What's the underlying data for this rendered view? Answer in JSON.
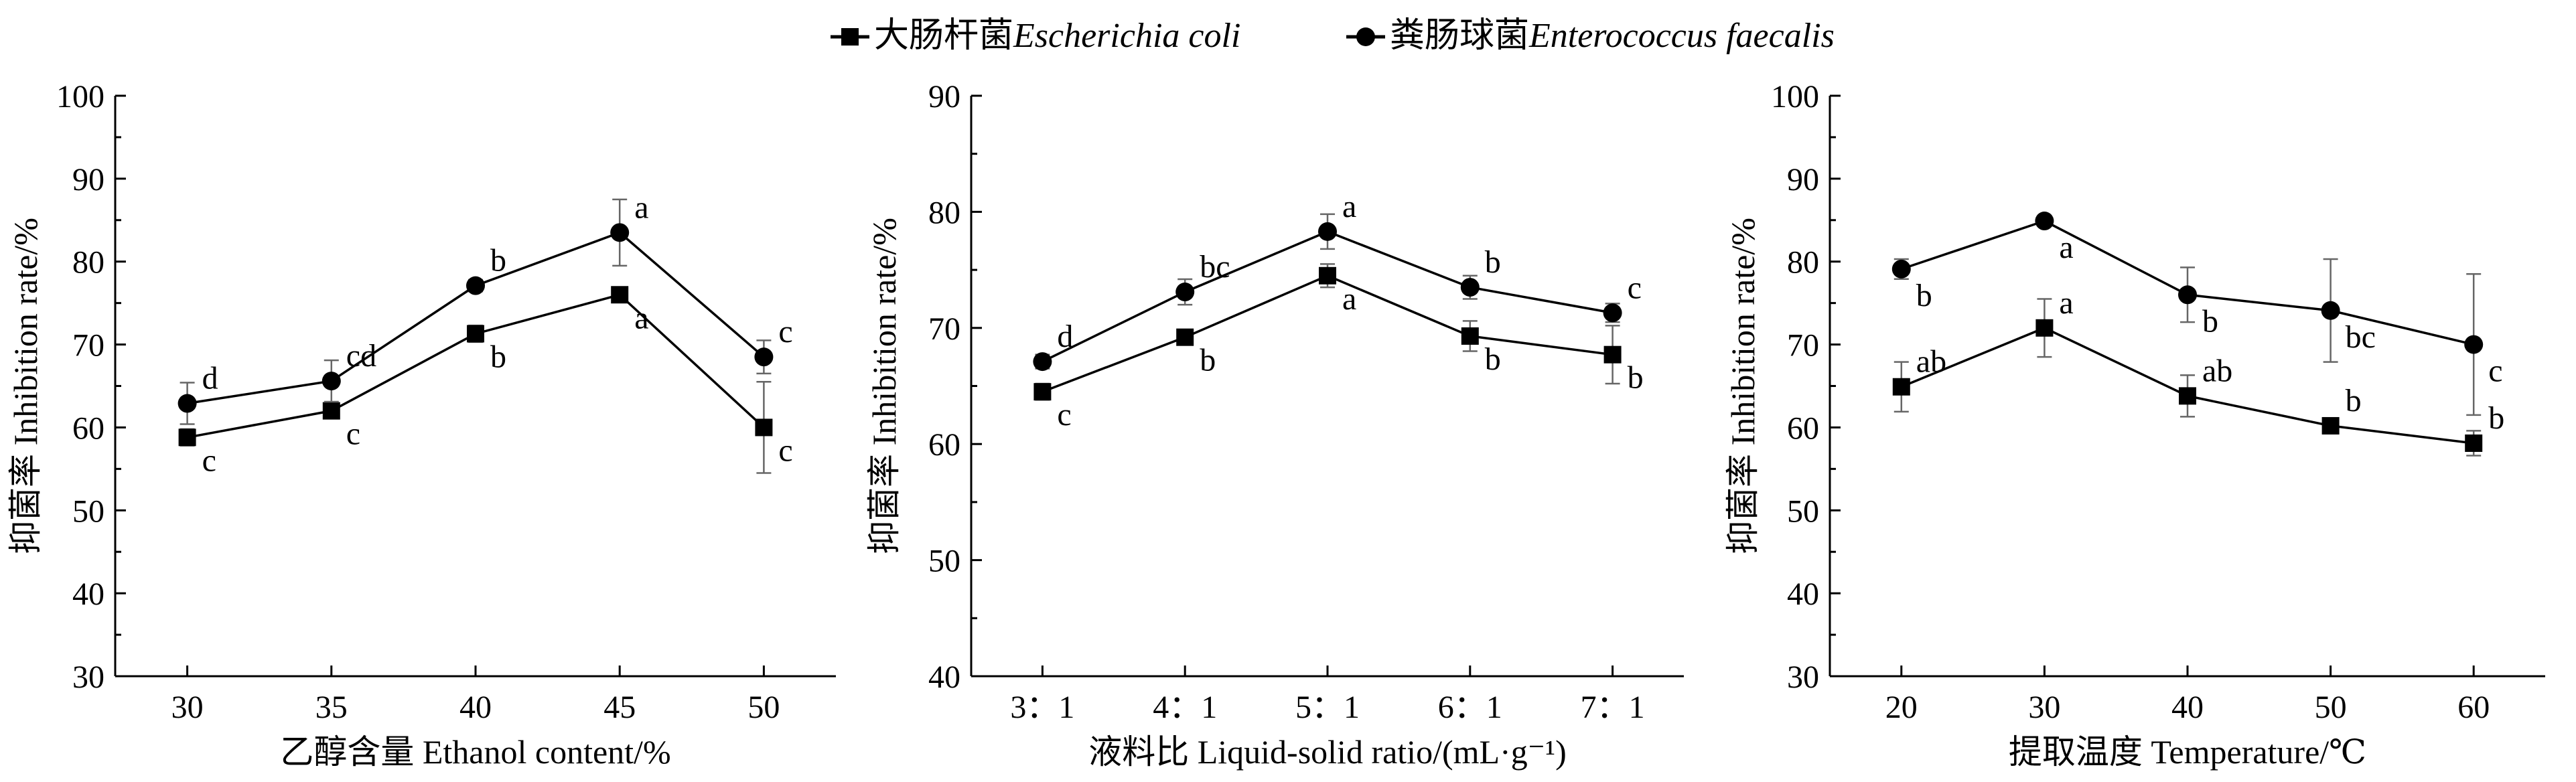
{
  "legend": [
    {
      "name_cn": "大肠杆菌",
      "name_latin": "Escherichia coli",
      "marker": "square"
    },
    {
      "name_cn": "粪肠球菌",
      "name_latin": "Enterococcus faecalis",
      "marker": "circle"
    }
  ],
  "chart_data": [
    {
      "type": "line",
      "xlabel": "乙醇含量 Ethanol content/%",
      "ylabel": "抑菌率 Inhibition rate/%",
      "ylim": [
        30,
        100
      ],
      "yticks": [
        30,
        40,
        50,
        60,
        70,
        80,
        90,
        100
      ],
      "categories": [
        "30",
        "35",
        "40",
        "45",
        "50"
      ],
      "series": [
        {
          "name": "大肠杆菌 Escherichia coli",
          "marker": "square",
          "values": [
            58.8,
            62.0,
            71.3,
            76.0,
            60.0
          ],
          "errors": [
            1.0,
            0.8,
            1.0,
            0.6,
            5.5
          ],
          "labels": [
            "c",
            "c",
            "b",
            "a",
            "c"
          ]
        },
        {
          "name": "粪肠球菌 Enterococcus faecalis",
          "marker": "circle",
          "values": [
            62.9,
            65.6,
            77.1,
            83.5,
            68.5
          ],
          "errors": [
            2.5,
            2.5,
            0.7,
            4.0,
            2.0
          ],
          "labels": [
            "d",
            "cd",
            "b",
            "a",
            "c"
          ]
        }
      ]
    },
    {
      "type": "line",
      "xlabel": "液料比 Liquid-solid ratio/(mL·g⁻¹)",
      "ylabel": "抑菌率 Inhibition rate/%",
      "ylim": [
        40,
        90
      ],
      "yticks": [
        40,
        50,
        60,
        70,
        80,
        90
      ],
      "categories": [
        "3：1",
        "4：1",
        "5：1",
        "6：1",
        "7：1"
      ],
      "series": [
        {
          "name": "大肠杆菌 Escherichia coli",
          "marker": "square",
          "values": [
            64.5,
            69.2,
            74.5,
            69.3,
            67.7
          ],
          "errors": [
            0.7,
            0.6,
            1.0,
            1.3,
            2.5
          ],
          "labels": [
            "c",
            "b",
            "a",
            "b",
            "b"
          ]
        },
        {
          "name": "粪肠球菌 Enterococcus faecalis",
          "marker": "circle",
          "values": [
            67.1,
            73.1,
            78.3,
            73.5,
            71.3
          ],
          "errors": [
            0.6,
            1.1,
            1.5,
            1.0,
            0.8
          ],
          "labels": [
            "d",
            "bc",
            "a",
            "b",
            "c"
          ]
        }
      ]
    },
    {
      "type": "line",
      "xlabel": "提取温度 Temperature/℃",
      "ylabel": "抑菌率 Inhibition rate/%",
      "ylim": [
        30,
        100
      ],
      "yticks": [
        30,
        40,
        50,
        60,
        70,
        80,
        90,
        100
      ],
      "categories": [
        "20",
        "30",
        "40",
        "50",
        "60"
      ],
      "series": [
        {
          "name": "大肠杆菌 Escherichia coli",
          "marker": "square",
          "values": [
            64.9,
            72.0,
            63.8,
            60.2,
            58.1
          ],
          "errors": [
            3.0,
            3.5,
            2.5,
            0.8,
            1.5
          ],
          "labels": [
            "ab",
            "a",
            "ab",
            "b",
            "b"
          ]
        },
        {
          "name": "粪肠球菌 Enterococcus faecalis",
          "marker": "circle",
          "values": [
            79.1,
            84.9,
            76.0,
            74.1,
            70.0
          ],
          "errors": [
            1.2,
            0.5,
            3.3,
            6.2,
            8.5
          ],
          "labels": [
            "b",
            "a",
            "b",
            "bc",
            "c"
          ]
        }
      ]
    }
  ]
}
